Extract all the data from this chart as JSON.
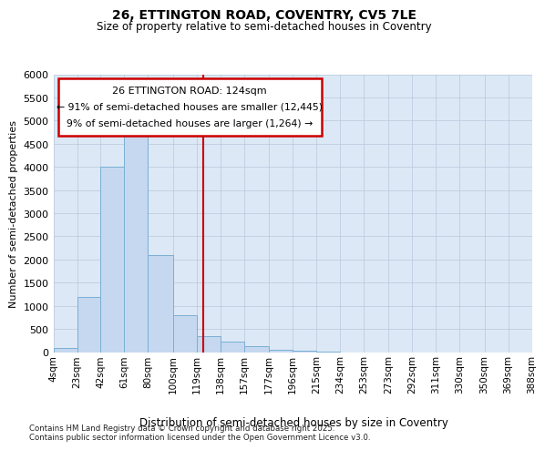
{
  "title_line1": "26, ETTINGTON ROAD, COVENTRY, CV5 7LE",
  "title_line2": "Size of property relative to semi-detached houses in Coventry",
  "xlabel": "Distribution of semi-detached houses by size in Coventry",
  "ylabel": "Number of semi-detached properties",
  "annotation_title": "26 ETTINGTON ROAD: 124sqm",
  "annotation_line1": "← 91% of semi-detached houses are smaller (12,445)",
  "annotation_line2": "9% of semi-detached houses are larger (1,264) →",
  "footer_line1": "Contains HM Land Registry data © Crown copyright and database right 2025.",
  "footer_line2": "Contains public sector information licensed under the Open Government Licence v3.0.",
  "property_size": 124,
  "bin_edges": [
    4,
    23,
    42,
    61,
    80,
    100,
    119,
    138,
    157,
    177,
    196,
    215,
    234,
    253,
    273,
    292,
    311,
    330,
    350,
    369,
    388
  ],
  "bar_heights": [
    80,
    1200,
    4000,
    4850,
    2100,
    800,
    350,
    230,
    120,
    50,
    30,
    5,
    0,
    0,
    0,
    0,
    0,
    0,
    0,
    0
  ],
  "tick_labels": [
    "4sqm",
    "23sqm",
    "42sqm",
    "61sqm",
    "80sqm",
    "100sqm",
    "119sqm",
    "138sqm",
    "157sqm",
    "177sqm",
    "196sqm",
    "215sqm",
    "234sqm",
    "253sqm",
    "273sqm",
    "292sqm",
    "311sqm",
    "330sqm",
    "350sqm",
    "369sqm",
    "388sqm"
  ],
  "ylim": [
    0,
    6000
  ],
  "yticks": [
    0,
    500,
    1000,
    1500,
    2000,
    2500,
    3000,
    3500,
    4000,
    4500,
    5000,
    5500,
    6000
  ],
  "bar_color": "#c5d8f0",
  "bar_edge_color": "#7aafd4",
  "vline_color": "#cc0000",
  "vline_x": 124,
  "grid_color": "#b8c8dc",
  "bg_color": "#dce8f5",
  "annotation_box_color": "#cc0000",
  "annotation_box_fill": "#ffffff"
}
